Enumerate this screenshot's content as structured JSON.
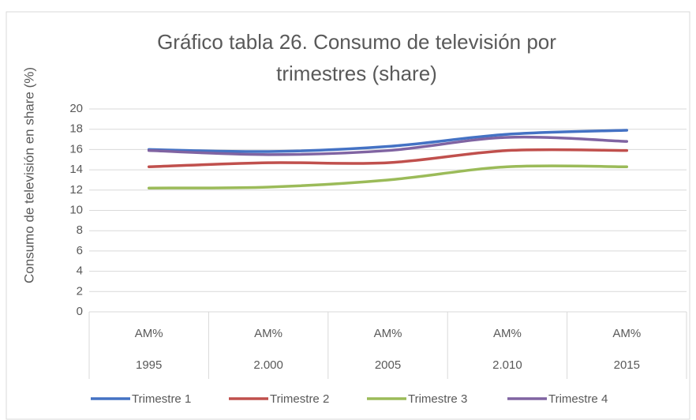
{
  "chart_data": {
    "type": "line",
    "title": "Gráfico tabla 26. Consumo de televisión por",
    "title_line2": "trimestres (share)",
    "y_label": "Consumo de televisión en share (%)",
    "categories": [
      "1995",
      "2.000",
      "2005",
      "2.010",
      "2015"
    ],
    "sublabels": [
      "AM%",
      "AM%",
      "AM%",
      "AM%",
      "AM%"
    ],
    "series": [
      {
        "name": "Trimestre 1",
        "color": "#4472c4",
        "values": [
          16.0,
          15.8,
          16.3,
          17.5,
          17.9
        ]
      },
      {
        "name": "Trimestre 2",
        "color": "#c0504d",
        "values": [
          14.3,
          14.7,
          14.7,
          15.9,
          15.9
        ]
      },
      {
        "name": "Trimestre 3",
        "color": "#9bbb59",
        "values": [
          12.2,
          12.3,
          13.0,
          14.3,
          14.3
        ]
      },
      {
        "name": "Trimestre 4",
        "color": "#8064a2",
        "values": [
          15.9,
          15.5,
          15.9,
          17.2,
          16.8
        ]
      }
    ],
    "ylim": [
      0,
      20
    ],
    "yticks": [
      0,
      2,
      4,
      6,
      8,
      10,
      12,
      14,
      16,
      18,
      20
    ],
    "grid": true,
    "smooth": true,
    "legend": "bottom"
  }
}
